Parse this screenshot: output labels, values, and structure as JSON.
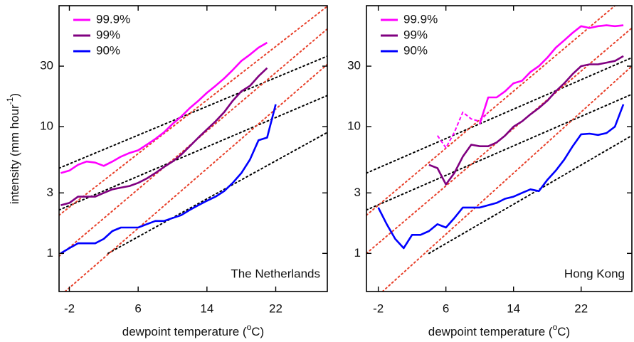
{
  "chart_data": [
    {
      "type": "line",
      "panel_label": "The Netherlands",
      "ylabel": "intensity (mm hour",
      "ylabel_sup": "-1",
      "ylabel_end": ")",
      "xlabel": "dewpoint temperature (",
      "xlabel_sup": "o",
      "xlabel_end": "C)",
      "xlim": [
        -3.2,
        28
      ],
      "xticks": [
        -2,
        6,
        14,
        22
      ],
      "ylim": [
        0.5,
        90
      ],
      "yticks": [
        1,
        3,
        10,
        30
      ],
      "log_y": true,
      "series": [
        {
          "name": "99.9%",
          "color": "#ff00ff",
          "x": [
            -3,
            -2,
            -1,
            0,
            1,
            2,
            3,
            4,
            5,
            6,
            7,
            8,
            9,
            10,
            11,
            12,
            13,
            14,
            15,
            16,
            17,
            18,
            19,
            20,
            21
          ],
          "values": [
            4.3,
            4.5,
            5,
            5.3,
            5.2,
            4.9,
            5.3,
            5.8,
            6.2,
            6.5,
            7.2,
            8,
            9,
            10.5,
            12,
            14,
            16,
            18.5,
            21,
            24,
            28,
            33,
            37,
            42,
            46
          ]
        },
        {
          "name": "99%",
          "color": "#800080",
          "x": [
            -3,
            -2,
            -1,
            0,
            1,
            2,
            3,
            4,
            5,
            6,
            7,
            8,
            9,
            10,
            11,
            12,
            13,
            14,
            15,
            16,
            17,
            18,
            19,
            20,
            21
          ],
          "values": [
            2.4,
            2.5,
            2.8,
            2.8,
            2.8,
            3.0,
            3.2,
            3.3,
            3.4,
            3.6,
            3.9,
            4.3,
            4.8,
            5.3,
            6,
            7,
            8.2,
            9.5,
            11,
            13,
            16,
            19,
            21,
            25,
            29
          ]
        },
        {
          "name": "90%",
          "color": "#0000ff",
          "x": [
            -3,
            -2,
            -1,
            0,
            1,
            2,
            3,
            4,
            5,
            6,
            7,
            8,
            9,
            10,
            11,
            12,
            13,
            14,
            15,
            16,
            17,
            18,
            19,
            20,
            21,
            22
          ],
          "values": [
            1.0,
            1.1,
            1.2,
            1.2,
            1.2,
            1.3,
            1.5,
            1.6,
            1.6,
            1.6,
            1.7,
            1.8,
            1.8,
            1.9,
            2.0,
            2.2,
            2.4,
            2.6,
            2.8,
            3.1,
            3.6,
            4.3,
            5.5,
            7.8,
            8.2,
            15
          ]
        }
      ],
      "guides": [
        {
          "color": "#000000",
          "x": [
            -3.2,
            28
          ],
          "values": [
            4.7,
            36
          ]
        },
        {
          "color": "#000000",
          "x": [
            -3.2,
            28
          ],
          "values": [
            2.2,
            17.6
          ]
        },
        {
          "color": "#000000",
          "x": [
            2.5,
            28
          ],
          "values": [
            1,
            9
          ]
        },
        {
          "color": "#e8402a",
          "x": [
            -3.2,
            28
          ],
          "values": [
            2.0,
            89
          ]
        },
        {
          "color": "#e8402a",
          "x": [
            -3.2,
            28
          ],
          "values": [
            0.95,
            59
          ]
        },
        {
          "color": "#e8402a",
          "x": [
            -2.5,
            28
          ],
          "values": [
            0.5,
            31
          ]
        }
      ]
    },
    {
      "type": "line",
      "panel_label": "Hong Kong",
      "xlabel": "dewpoint temperature (",
      "xlabel_sup": "o",
      "xlabel_end": "C)",
      "xlim": [
        -3.4,
        28
      ],
      "xticks": [
        -2,
        6,
        14,
        22
      ],
      "ylim": [
        0.5,
        90
      ],
      "yticks": [
        1,
        3,
        10,
        30
      ],
      "log_y": true,
      "series": [
        {
          "name": "99.9%",
          "color": "#ff00ff",
          "x": [
            10,
            11,
            12,
            13,
            14,
            15,
            16,
            17,
            18,
            19,
            20,
            21,
            22,
            23,
            24,
            25,
            26,
            27
          ],
          "values": [
            10.5,
            17,
            17,
            19,
            22,
            23,
            27,
            30,
            35,
            42,
            48,
            55,
            62,
            60,
            62,
            63,
            62,
            63
          ]
        },
        {
          "color": "#ff00ff",
          "dashed": true,
          "x": [
            5,
            6,
            7,
            8,
            9,
            10,
            11
          ],
          "values": [
            8.5,
            6.8,
            9,
            13,
            11.5,
            11,
            13
          ]
        },
        {
          "name": "99%",
          "color": "#800080",
          "x": [
            4,
            5,
            6,
            7,
            8,
            9,
            10,
            11,
            12,
            13,
            14,
            15,
            16,
            17,
            18,
            19,
            20,
            21,
            22,
            23,
            24,
            25,
            26,
            27
          ],
          "values": [
            5.0,
            4.7,
            3.5,
            4.3,
            5.8,
            7.2,
            7.0,
            7.0,
            7.5,
            8.5,
            10,
            11,
            12.5,
            14,
            16,
            19,
            22,
            26,
            30,
            31,
            31,
            32,
            33,
            36
          ]
        },
        {
          "name": "90%",
          "color": "#0000ff",
          "x": [
            -2,
            -1,
            0,
            1,
            2,
            3,
            4,
            5,
            6,
            7,
            8,
            9,
            10,
            11,
            12,
            13,
            14,
            15,
            16,
            17,
            18,
            19,
            20,
            21,
            22,
            23,
            24,
            25,
            26,
            27
          ],
          "values": [
            2.3,
            1.7,
            1.3,
            1.1,
            1.4,
            1.4,
            1.5,
            1.7,
            1.6,
            1.9,
            2.3,
            2.3,
            2.3,
            2.4,
            2.5,
            2.7,
            2.8,
            3.0,
            3.2,
            3.1,
            3.8,
            4.5,
            5.5,
            7,
            8.7,
            8.8,
            8.6,
            8.9,
            10,
            15
          ]
        }
      ],
      "guides": [
        {
          "color": "#000000",
          "x": [
            -3.4,
            28
          ],
          "values": [
            4.3,
            35
          ]
        },
        {
          "color": "#000000",
          "x": [
            -3.4,
            28
          ],
          "values": [
            2.2,
            18
          ]
        },
        {
          "color": "#000000",
          "x": [
            4,
            28
          ],
          "values": [
            1,
            8.5
          ]
        },
        {
          "color": "#e8402a",
          "x": [
            -3.4,
            26
          ],
          "values": [
            2.0,
            90
          ]
        },
        {
          "color": "#e8402a",
          "x": [
            -3.4,
            28
          ],
          "values": [
            1.0,
            60
          ]
        },
        {
          "color": "#e8402a",
          "x": [
            -1.5,
            28
          ],
          "values": [
            0.5,
            30
          ]
        }
      ]
    }
  ]
}
